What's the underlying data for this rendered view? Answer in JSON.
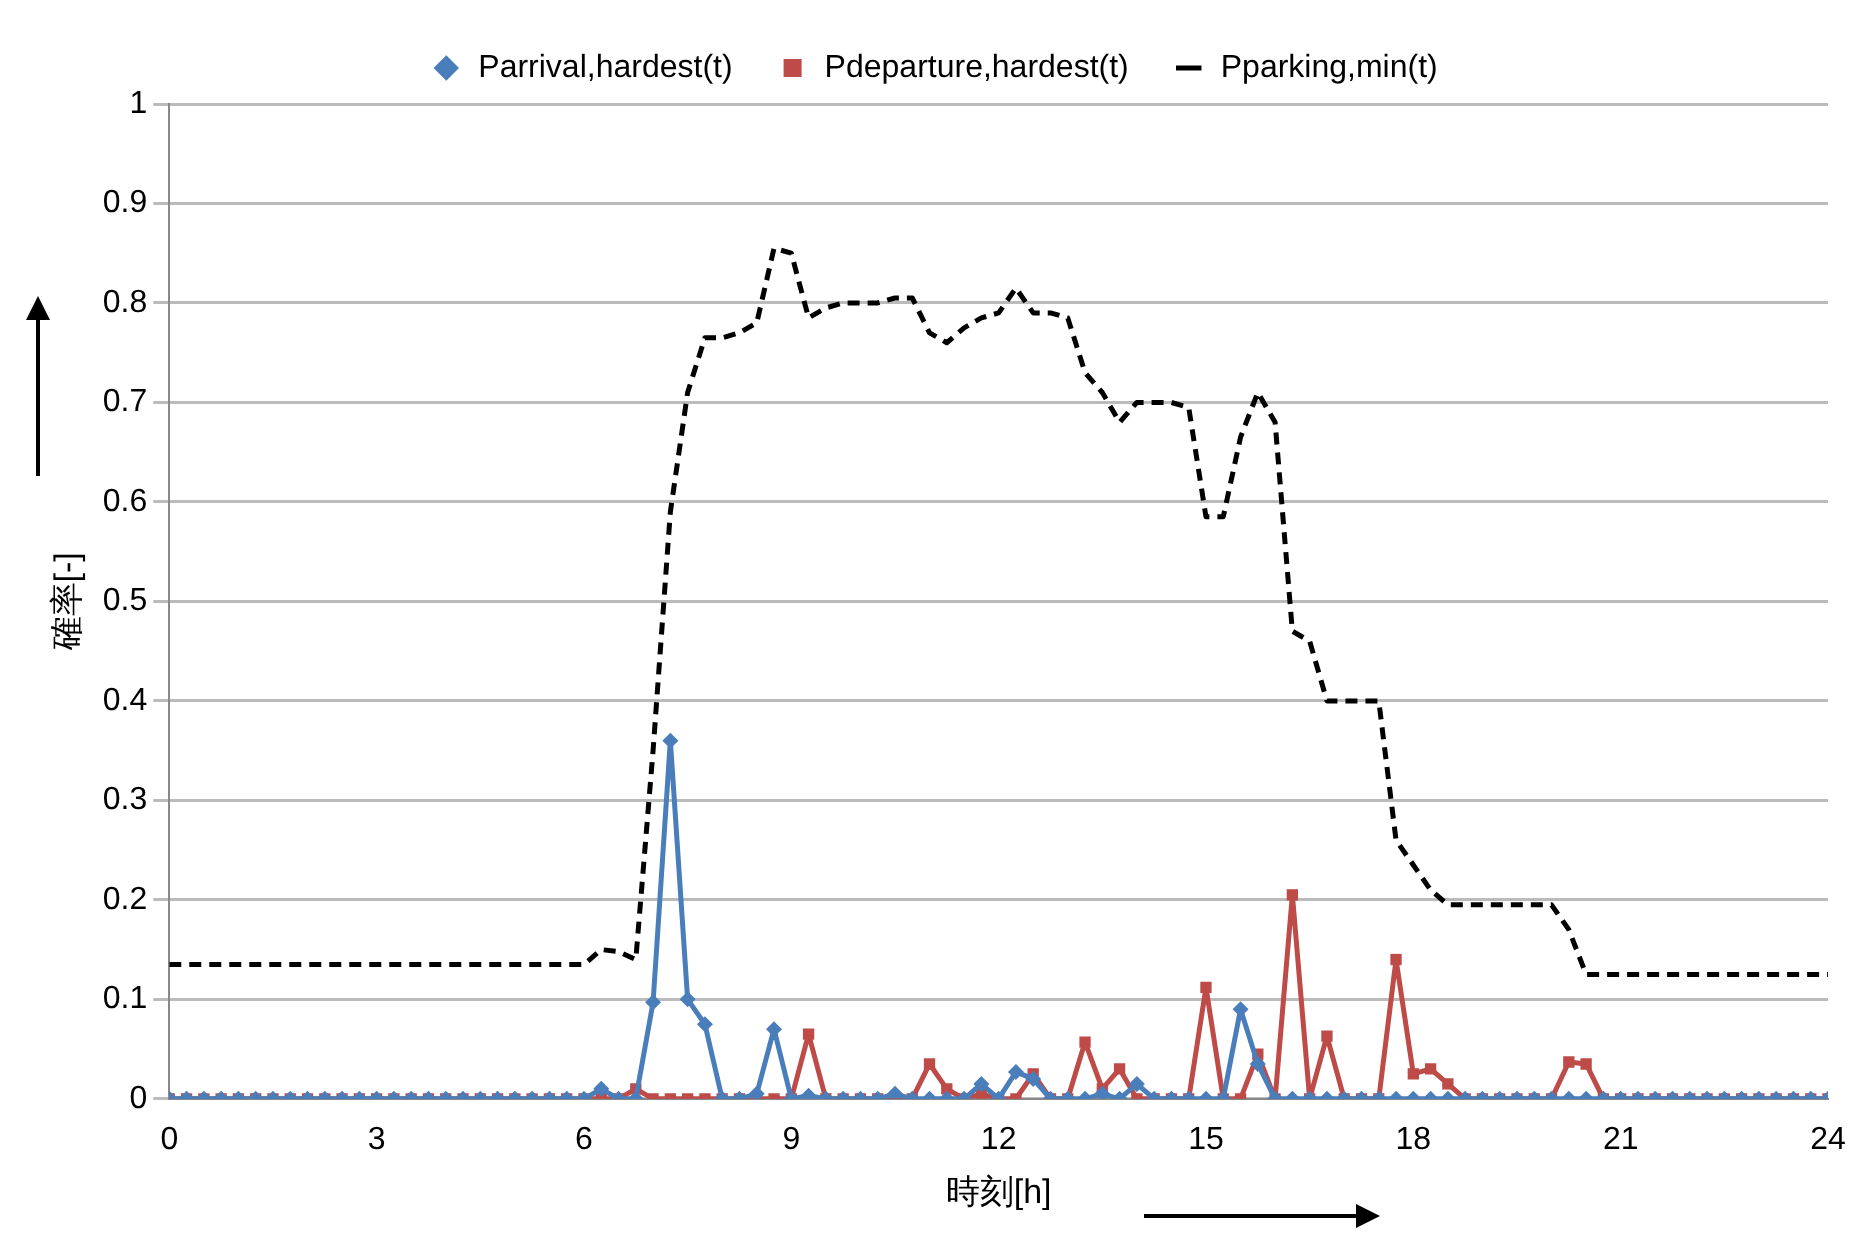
{
  "chart_data": {
    "type": "line",
    "xlabel": "時刻[h]",
    "ylabel": "確率[-]",
    "xlim": [
      0,
      24
    ],
    "xticks": [
      0,
      3,
      6,
      9,
      12,
      15,
      18,
      21,
      24
    ],
    "ylim": [
      0,
      1
    ],
    "yticks": [
      0,
      0.1,
      0.2,
      0.3,
      0.4,
      0.5,
      0.6,
      0.7,
      0.8,
      0.9,
      1
    ],
    "grid": "y",
    "legend": "top",
    "x": [
      0,
      0.25,
      0.5,
      0.75,
      1,
      1.25,
      1.5,
      1.75,
      2,
      2.25,
      2.5,
      2.75,
      3,
      3.25,
      3.5,
      3.75,
      4,
      4.25,
      4.5,
      4.75,
      5,
      5.25,
      5.5,
      5.75,
      6,
      6.25,
      6.5,
      6.75,
      7,
      7.25,
      7.5,
      7.75,
      8,
      8.25,
      8.5,
      8.75,
      9,
      9.25,
      9.5,
      9.75,
      10,
      10.25,
      10.5,
      10.75,
      11,
      11.25,
      11.5,
      11.75,
      12,
      12.25,
      12.5,
      12.75,
      13,
      13.25,
      13.5,
      13.75,
      14,
      14.25,
      14.5,
      14.75,
      15,
      15.25,
      15.5,
      15.75,
      16,
      16.25,
      16.5,
      16.75,
      17,
      17.25,
      17.5,
      17.75,
      18,
      18.25,
      18.5,
      18.75,
      19,
      19.25,
      19.5,
      19.75,
      20,
      20.25,
      20.5,
      20.75,
      21,
      21.25,
      21.5,
      21.75,
      22,
      22.25,
      22.5,
      22.75,
      23,
      23.25,
      23.5,
      23.75,
      24
    ],
    "series": [
      {
        "name": "Parrival,hardest(t)",
        "color": "#4a7ebb",
        "marker": "diamond",
        "line_style": "solid",
        "values": [
          0,
          0,
          0,
          0,
          0,
          0,
          0,
          0,
          0,
          0,
          0,
          0,
          0,
          0,
          0,
          0,
          0,
          0,
          0,
          0,
          0,
          0,
          0,
          0,
          0,
          0.01,
          0,
          0,
          0.097,
          0.36,
          0.1,
          0.075,
          0,
          0,
          0.005,
          0.07,
          0,
          0.003,
          0,
          0,
          0,
          0,
          0.005,
          0,
          0,
          0,
          0,
          0.015,
          0,
          0.027,
          0.02,
          0,
          0,
          0,
          0.005,
          0,
          0.015,
          0,
          0,
          0,
          0,
          0,
          0.09,
          0.035,
          0,
          0,
          0,
          0,
          0,
          0,
          0,
          0,
          0,
          0,
          0,
          0,
          0,
          0,
          0,
          0,
          0,
          0,
          0,
          0,
          0,
          0,
          0,
          0,
          0,
          0,
          0,
          0,
          0,
          0,
          0,
          0,
          0
        ]
      },
      {
        "name": "Pdeparture,hardest(t)",
        "color": "#be4b48",
        "marker": "square",
        "line_style": "solid",
        "values": [
          0,
          0,
          0,
          0,
          0,
          0,
          0,
          0,
          0,
          0,
          0,
          0,
          0,
          0,
          0,
          0,
          0,
          0,
          0,
          0,
          0,
          0,
          0,
          0,
          0,
          0,
          0,
          0.01,
          0,
          0,
          0,
          0,
          0,
          0,
          0,
          0,
          0,
          0.065,
          0,
          0,
          0,
          0,
          0,
          0,
          0.035,
          0.01,
          0,
          0.005,
          0,
          0,
          0.025,
          0,
          0,
          0.057,
          0.01,
          0.03,
          0,
          0,
          0,
          0,
          0.112,
          0,
          0,
          0.045,
          0,
          0.205,
          0,
          0.063,
          0,
          0,
          0,
          0.14,
          0.025,
          0.03,
          0.015,
          0,
          0,
          0,
          0,
          0,
          0,
          0.037,
          0.035,
          0,
          0,
          0,
          0,
          0,
          0,
          0,
          0,
          0,
          0,
          0,
          0,
          0,
          0
        ]
      },
      {
        "name": "Pparking,min(t)",
        "color": "#000000",
        "marker": "none",
        "line_style": "dashed",
        "values": [
          0.135,
          0.135,
          0.135,
          0.135,
          0.135,
          0.135,
          0.135,
          0.135,
          0.135,
          0.135,
          0.135,
          0.135,
          0.135,
          0.135,
          0.135,
          0.135,
          0.135,
          0.135,
          0.135,
          0.135,
          0.135,
          0.135,
          0.135,
          0.135,
          0.135,
          0.15,
          0.148,
          0.14,
          0.35,
          0.59,
          0.71,
          0.765,
          0.765,
          0.77,
          0.78,
          0.855,
          0.85,
          0.785,
          0.795,
          0.8,
          0.8,
          0.8,
          0.805,
          0.805,
          0.77,
          0.76,
          0.775,
          0.785,
          0.79,
          0.815,
          0.79,
          0.79,
          0.785,
          0.73,
          0.71,
          0.68,
          0.7,
          0.7,
          0.7,
          0.695,
          0.585,
          0.585,
          0.665,
          0.71,
          0.68,
          0.47,
          0.46,
          0.4,
          0.4,
          0.4,
          0.4,
          0.26,
          0.235,
          0.21,
          0.195,
          0.195,
          0.195,
          0.195,
          0.195,
          0.195,
          0.195,
          0.17,
          0.125,
          0.125,
          0.125,
          0.125,
          0.125,
          0.125,
          0.125,
          0.125,
          0.125,
          0.125,
          0.125,
          0.125,
          0.125,
          0.125,
          0.125
        ]
      }
    ]
  }
}
